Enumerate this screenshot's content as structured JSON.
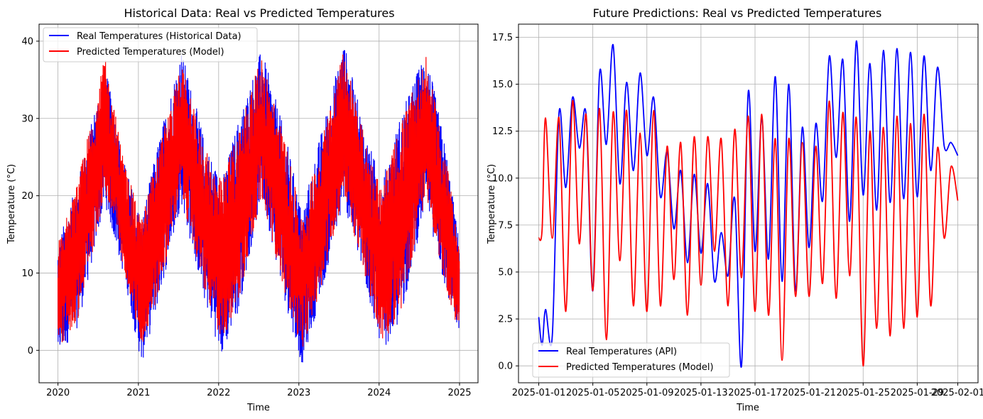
{
  "chart_data": [
    {
      "type": "line",
      "title": "Historical Data: Real vs Predicted Temperatures",
      "xlabel": "Time",
      "ylabel": "Temperature (°C)",
      "xlim": [
        "2019-10-07",
        "2025-03-26"
      ],
      "ylim": [
        -4.2,
        42.2
      ],
      "yticks": [
        0,
        10,
        20,
        30,
        40
      ],
      "xticks": [
        "2020",
        "2021",
        "2022",
        "2023",
        "2024",
        "2025"
      ],
      "grid": true,
      "legend_position": "top-left",
      "series": [
        {
          "name": "Real Temperatures (Historical Data)",
          "color": "#0000ff",
          "envelope": {
            "x": [
              "2020-01-01",
              "2020-04-01",
              "2020-08-01",
              "2020-11-01",
              "2021-01-15",
              "2021-04-01",
              "2021-07-15",
              "2021-11-01",
              "2022-01-15",
              "2022-04-01",
              "2022-07-15",
              "2022-11-01",
              "2023-01-15",
              "2023-04-01",
              "2023-07-25",
              "2023-11-01",
              "2024-01-15",
              "2024-04-01",
              "2024-08-01",
              "2024-11-01",
              "2024-12-31"
            ],
            "low": [
              -1,
              3,
              19,
              9,
              -2,
              6,
              19,
              6,
              -1,
              5,
              20,
              6,
              -2,
              6,
              19,
              8,
              0,
              3,
              19,
              7,
              2
            ],
            "high": [
              14,
              22,
              37,
              24,
              17,
              27,
              39,
              27,
              22,
              30,
              39,
              28,
              18,
              27,
              40,
              28,
              22,
              30,
              39,
              26,
              14
            ]
          }
        },
        {
          "name": "Predicted Temperatures (Model)",
          "color": "#ff0000",
          "envelope": {
            "x": [
              "2020-01-01",
              "2020-04-01",
              "2020-08-01",
              "2020-11-01",
              "2021-01-15",
              "2021-04-01",
              "2021-07-15",
              "2021-11-01",
              "2022-01-15",
              "2022-04-01",
              "2022-07-15",
              "2022-11-01",
              "2023-01-15",
              "2023-04-01",
              "2023-07-25",
              "2023-11-01",
              "2024-01-15",
              "2024-04-01",
              "2024-08-01",
              "2024-11-01",
              "2024-12-31"
            ],
            "low": [
              0,
              4,
              20,
              10,
              0,
              7,
              20,
              7,
              1,
              6,
              20,
              7,
              0,
              7,
              20,
              9,
              1,
              4,
              20,
              8,
              2
            ],
            "high": [
              14,
              22,
              38,
              24,
              17,
              26,
              37,
              26,
              22,
              29,
              38,
              27,
              17,
              26,
              39,
              27,
              21,
              29,
              38,
              25,
              13
            ]
          }
        }
      ]
    },
    {
      "type": "line",
      "title": "Future Predictions: Real vs Predicted Temperatures",
      "xlabel": "Time",
      "ylabel": "Temperature (°C)",
      "xlim": [
        "2024-12-30T12:00",
        "2025-02-02T12:00"
      ],
      "ylim": [
        -0.9,
        18.2
      ],
      "yticks": [
        0.0,
        2.5,
        5.0,
        7.5,
        10.0,
        12.5,
        15.0,
        17.5
      ],
      "xticks": [
        "2025-01-01",
        "2025-01-05",
        "2025-01-09",
        "2025-01-13",
        "2025-01-17",
        "2025-01-21",
        "2025-01-25",
        "2025-01-29",
        "2025-02-01"
      ],
      "grid": true,
      "legend_position": "bottom-left",
      "series": [
        {
          "name": "Real Temperatures (API)",
          "color": "#0000ff",
          "x": [
            "2025-01-01",
            "2025-01-01T06:00",
            "2025-01-01T12:00",
            "2025-01-02",
            "2025-01-02T12:00",
            "2025-01-03",
            "2025-01-03T12:00",
            "2025-01-04",
            "2025-01-04T12:00",
            "2025-01-05",
            "2025-01-05T12:00",
            "2025-01-06",
            "2025-01-06T12:00",
            "2025-01-07",
            "2025-01-07T12:00",
            "2025-01-08",
            "2025-01-08T12:00",
            "2025-01-09",
            "2025-01-09T12:00",
            "2025-01-10",
            "2025-01-10T12:00",
            "2025-01-11",
            "2025-01-11T12:00",
            "2025-01-12",
            "2025-01-12T12:00",
            "2025-01-13",
            "2025-01-13T12:00",
            "2025-01-14",
            "2025-01-14T12:00",
            "2025-01-15",
            "2025-01-15T12:00",
            "2025-01-16",
            "2025-01-16T12:00",
            "2025-01-17",
            "2025-01-17T12:00",
            "2025-01-18",
            "2025-01-18T12:00",
            "2025-01-19",
            "2025-01-19T12:00",
            "2025-01-20",
            "2025-01-20T12:00",
            "2025-01-21",
            "2025-01-21T12:00",
            "2025-01-22",
            "2025-01-22T12:00",
            "2025-01-23",
            "2025-01-23T12:00",
            "2025-01-24",
            "2025-01-24T12:00",
            "2025-01-25",
            "2025-01-25T12:00",
            "2025-01-26",
            "2025-01-26T12:00",
            "2025-01-27",
            "2025-01-27T12:00",
            "2025-01-28",
            "2025-01-28T12:00",
            "2025-01-29",
            "2025-01-29T12:00",
            "2025-01-30",
            "2025-01-30T12:00",
            "2025-01-31",
            "2025-01-31T12:00",
            "2025-02-01"
          ],
          "y": [
            2.6,
            1.1,
            3.0,
            1.6,
            13.5,
            9.5,
            14.3,
            11.6,
            13.4,
            4.0,
            15.6,
            11.8,
            17.1,
            9.7,
            15.1,
            10.4,
            15.6,
            11.2,
            14.3,
            9.0,
            11.4,
            7.3,
            10.4,
            5.5,
            10.2,
            6.0,
            9.7,
            4.5,
            7.1,
            4.8,
            8.9,
            0.0,
            14.6,
            6.1,
            13.2,
            5.7,
            15.4,
            4.5,
            15.0,
            4.0,
            12.7,
            6.3,
            12.9,
            8.8,
            16.5,
            11.1,
            16.3,
            7.7,
            17.3,
            9.1,
            16.1,
            8.3,
            16.8,
            8.7,
            16.9,
            8.9,
            16.7,
            9.0,
            16.5,
            10.4,
            15.9,
            11.7,
            11.9,
            11.2
          ]
        },
        {
          "name": "Predicted Temperatures (Model)",
          "color": "#ff0000",
          "x": [
            "2025-01-01",
            "2025-01-01T06:00",
            "2025-01-01T12:00",
            "2025-01-02",
            "2025-01-02T12:00",
            "2025-01-03",
            "2025-01-03T12:00",
            "2025-01-04",
            "2025-01-04T12:00",
            "2025-01-05",
            "2025-01-05T12:00",
            "2025-01-06",
            "2025-01-06T12:00",
            "2025-01-07",
            "2025-01-07T12:00",
            "2025-01-08",
            "2025-01-08T12:00",
            "2025-01-09",
            "2025-01-09T12:00",
            "2025-01-10",
            "2025-01-10T12:00",
            "2025-01-11",
            "2025-01-11T12:00",
            "2025-01-12",
            "2025-01-12T12:00",
            "2025-01-13",
            "2025-01-13T12:00",
            "2025-01-14",
            "2025-01-14T12:00",
            "2025-01-15",
            "2025-01-15T12:00",
            "2025-01-16",
            "2025-01-16T12:00",
            "2025-01-17",
            "2025-01-17T12:00",
            "2025-01-18",
            "2025-01-18T12:00",
            "2025-01-19",
            "2025-01-19T12:00",
            "2025-01-20",
            "2025-01-20T12:00",
            "2025-01-21",
            "2025-01-21T12:00",
            "2025-01-22",
            "2025-01-22T12:00",
            "2025-01-23",
            "2025-01-23T12:00",
            "2025-01-24",
            "2025-01-24T12:00",
            "2025-01-25",
            "2025-01-25T12:00",
            "2025-01-26",
            "2025-01-26T12:00",
            "2025-01-27",
            "2025-01-27T12:00",
            "2025-01-28",
            "2025-01-28T12:00",
            "2025-01-29",
            "2025-01-29T12:00",
            "2025-01-30",
            "2025-01-30T12:00",
            "2025-01-31",
            "2025-01-31T12:00",
            "2025-02-01"
          ],
          "y": [
            6.8,
            7.3,
            13.2,
            6.8,
            13.2,
            2.9,
            14.1,
            6.5,
            13.4,
            4.0,
            13.7,
            1.4,
            13.5,
            5.6,
            13.6,
            3.2,
            12.4,
            2.9,
            13.6,
            3.2,
            11.7,
            4.6,
            11.9,
            2.7,
            12.2,
            4.3,
            12.2,
            6.1,
            12.1,
            3.2,
            12.6,
            4.7,
            13.3,
            2.9,
            13.4,
            2.7,
            12.1,
            0.3,
            12.1,
            3.7,
            11.9,
            3.7,
            11.7,
            4.4,
            14.1,
            3.6,
            13.5,
            4.8,
            13.2,
            0.0,
            12.5,
            2.0,
            12.7,
            1.6,
            13.3,
            2.0,
            12.9,
            2.6,
            13.4,
            3.2,
            11.6,
            6.8,
            10.6,
            8.8
          ]
        }
      ]
    }
  ]
}
